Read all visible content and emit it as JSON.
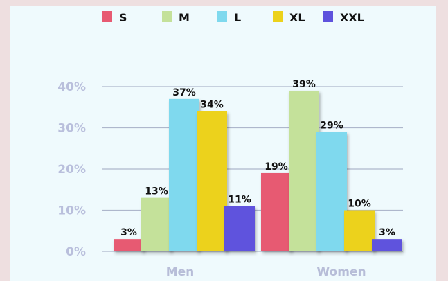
{
  "chart_data": {
    "type": "bar",
    "categories": [
      "Men",
      "Women"
    ],
    "series": [
      {
        "name": "S",
        "color": "#e75a72",
        "values": [
          3,
          19
        ]
      },
      {
        "name": "M",
        "color": "#c4e19a",
        "values": [
          13,
          39
        ]
      },
      {
        "name": "L",
        "color": "#7fd9ee",
        "values": [
          37,
          29
        ]
      },
      {
        "name": "XL",
        "color": "#ecd21b",
        "values": [
          34,
          10
        ]
      },
      {
        "name": "XXL",
        "color": "#5e52dd",
        "values": [
          11,
          3
        ]
      }
    ],
    "data_labels": [
      [
        "3%",
        "19%"
      ],
      [
        "13%",
        "39%"
      ],
      [
        "37%",
        "29%"
      ],
      [
        "34%",
        "10%"
      ],
      [
        "11%",
        "3%"
      ]
    ],
    "yticks": [
      0,
      10,
      20,
      30,
      40
    ],
    "ytick_labels": [
      "0%",
      "10%",
      "20%",
      "30%",
      "40%"
    ],
    "ylim": [
      0,
      40
    ],
    "grid": true,
    "legend_position": "top",
    "title": "",
    "xlabel": "",
    "ylabel": ""
  }
}
